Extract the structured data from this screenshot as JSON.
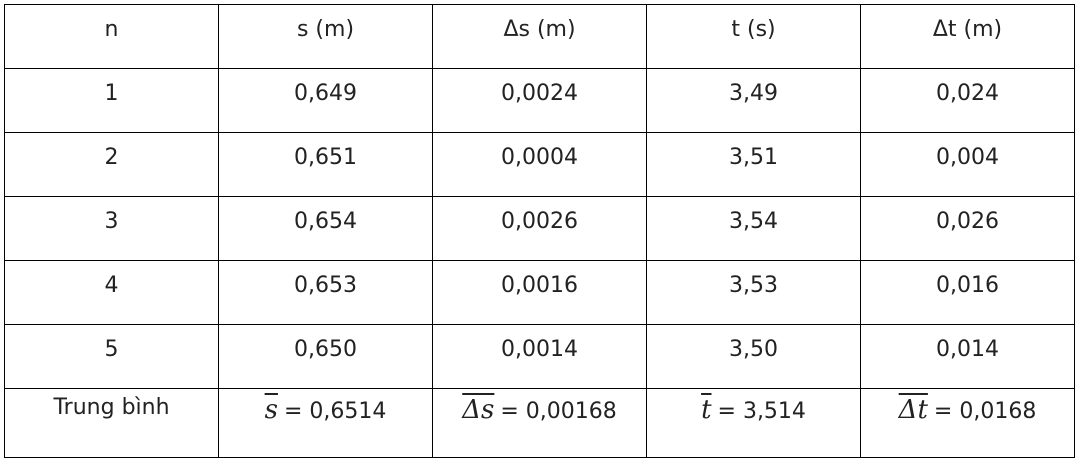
{
  "table": {
    "header": [
      "n",
      "s (m)",
      "Δs (m)",
      "t (s)",
      "Δt (m)"
    ],
    "rows": [
      [
        "1",
        "0,649",
        "0,0024",
        "3,49",
        "0,024"
      ],
      [
        "2",
        "0,651",
        "0,0004",
        "3,51",
        "0,004"
      ],
      [
        "3",
        "0,654",
        "0,0026",
        "3,54",
        "0,026"
      ],
      [
        "4",
        "0,653",
        "0,0016",
        "3,53",
        "0,016"
      ],
      [
        "5",
        "0,650",
        "0,0014",
        "3,50",
        "0,014"
      ]
    ],
    "footer": {
      "label": "Trung bình",
      "averages": [
        {
          "symbol": "s",
          "value": "= 0,6514"
        },
        {
          "symbol": "Δs",
          "value": "= 0,00168"
        },
        {
          "symbol": "t",
          "value": "= 3,514"
        },
        {
          "symbol": "Δt",
          "value": "= 0,0168"
        }
      ]
    }
  }
}
